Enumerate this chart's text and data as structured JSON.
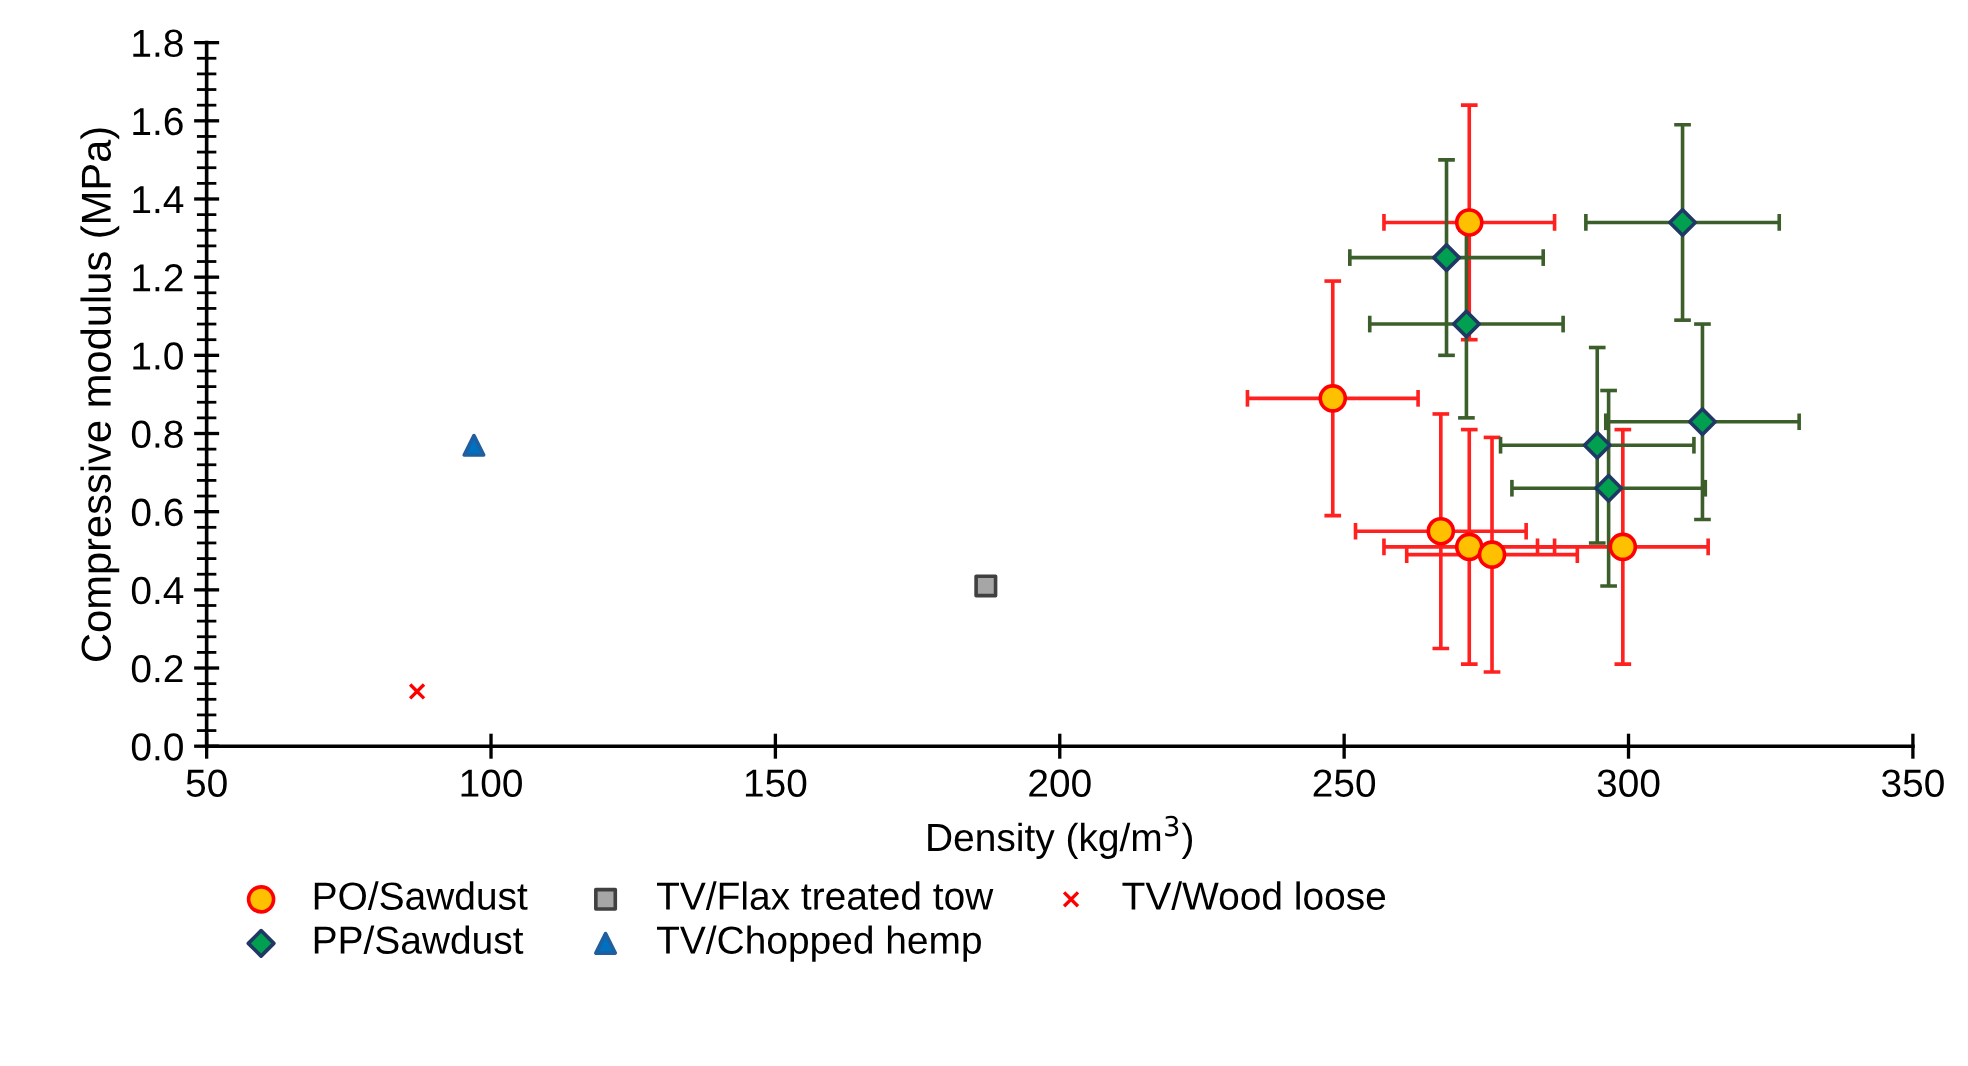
{
  "chart_data": {
    "type": "scatter",
    "xlabel": "Density (kg/m$^{3}$)",
    "ylabel": "Compressive modulus (MPa)",
    "xlim": [
      50,
      350
    ],
    "xticks": [
      50,
      100,
      150,
      200,
      250,
      300,
      350
    ],
    "ylim": [
      0,
      1.8
    ],
    "yticks": [
      {
        "value": 0,
        "label": "0.0"
      },
      0.2,
      0.4,
      0.6,
      0.8,
      {
        "value": 1.0,
        "label": "1.0"
      },
      1.2,
      1.4,
      1.6,
      1.8
    ],
    "grid": false,
    "legend": "bottom",
    "series": [
      {
        "name": "PO/Sawdust",
        "color": "#ffc000",
        "marker": "circle",
        "x": [
          272,
          248,
          267,
          272,
          276,
          299
        ],
        "values": [
          1.34,
          0.89,
          0.55,
          0.51,
          0.49,
          0.51
        ],
        "errors": [
          0.3,
          0.3,
          0.3,
          0.3,
          0.3,
          0.3
        ],
        "xerrors": [
          15,
          15,
          15,
          15,
          15,
          15
        ]
      },
      {
        "name": "PP/Sawdust",
        "color": "#00a050",
        "marker": "diamond",
        "x": [
          268,
          271.5,
          309.5,
          313,
          294.5,
          296.5
        ],
        "values": [
          1.25,
          1.08,
          1.34,
          0.83,
          0.77,
          0.66
        ],
        "errors": [
          0.25,
          0.24,
          0.25,
          0.25,
          0.25,
          0.25
        ],
        "xerrors": [
          17,
          17,
          17,
          17,
          17,
          17
        ]
      },
      {
        "name": "TV/Flax treated tow",
        "color": "#a6a6a6",
        "marker": "square",
        "x": [
          187
        ],
        "values": [
          0.41
        ]
      },
      {
        "name": "TV/Chopped hemp",
        "color": "#0070c0",
        "marker": "triangle",
        "x": [
          97
        ],
        "values": [
          0.77
        ]
      },
      {
        "name": "TV/Wood loose",
        "color": "#ff0000",
        "marker": "cross",
        "x": [
          87
        ],
        "values": [
          0.14
        ]
      }
    ]
  }
}
